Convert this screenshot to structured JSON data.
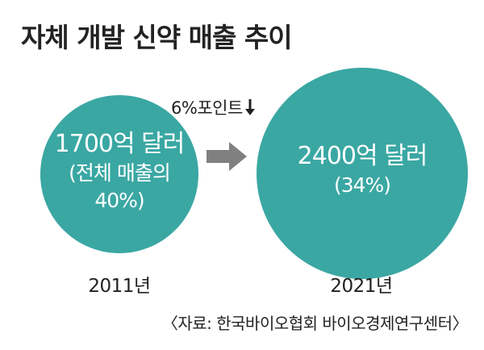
{
  "title": "자체 개발 신약 매출 추이",
  "left_circle": {
    "main": "1700억 달러",
    "sub_line1": "(전체 매출의",
    "sub_line2": "40%)"
  },
  "right_circle": {
    "main": "2400억 달러",
    "sub": "(34%)"
  },
  "change_label": "6%포인트",
  "change_icon": "arrow-down-icon",
  "arrow_icon": "arrow-right-icon",
  "year_left": "2011년",
  "year_right": "2021년",
  "source": "〈자료: 한국바이오협회 바이오경제연구센터〉",
  "colors": {
    "circle": "#3aa7a3",
    "arrow": "#808080",
    "text": "#222222"
  }
}
